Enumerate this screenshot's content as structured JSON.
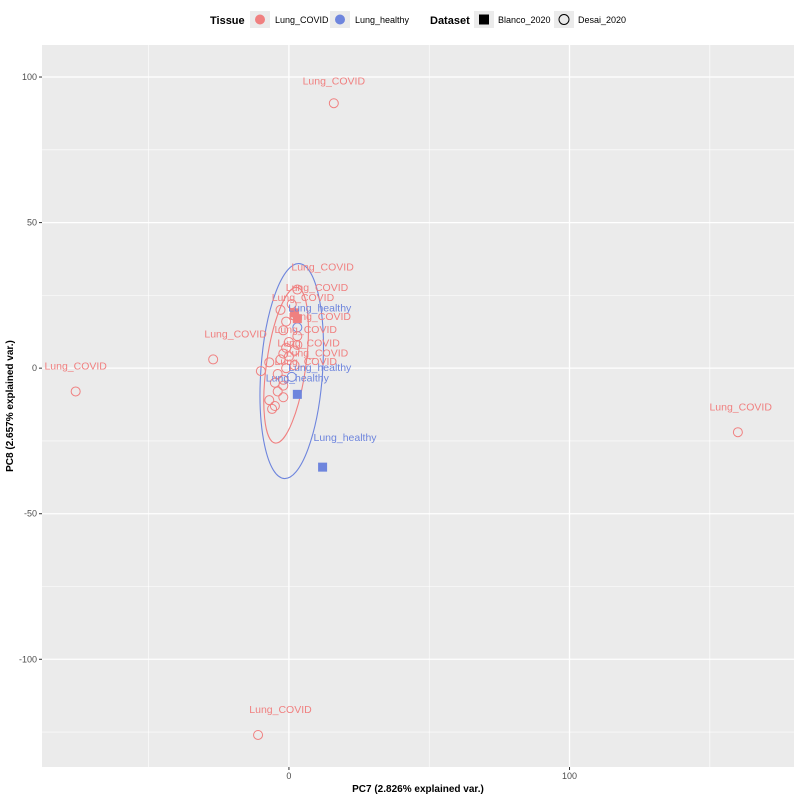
{
  "chart_data": {
    "type": "scatter",
    "title": "",
    "xlabel": "PC7 (2.826% explained var.)",
    "ylabel": "PC8 (2.657% explained var.)",
    "xlim": [
      -88,
      180
    ],
    "ylim": [
      -137,
      111
    ],
    "xticks": [
      0,
      100
    ],
    "yticks": [
      -100,
      -50,
      0,
      50,
      100
    ],
    "grid": true,
    "legend_position": "top",
    "legend": {
      "color_title": "Tissue",
      "color_entries": [
        {
          "label": "Lung_COVID",
          "color": "#F08080"
        },
        {
          "label": "Lung_healthy",
          "color": "#6E85DD"
        }
      ],
      "shape_title": "Dataset",
      "shape_entries": [
        {
          "label": "Blanco_2020",
          "shape": "square"
        },
        {
          "label": "Desai_2020",
          "shape": "circle"
        }
      ]
    },
    "colors": {
      "Lung_COVID": "#F08080",
      "Lung_healthy": "#6E85DD",
      "panel_background": "#EBEBEB",
      "grid": "#FFFFFF"
    },
    "points": [
      {
        "x": 16,
        "y": 91,
        "tissue": "Lung_COVID",
        "dataset": "Desai_2020"
      },
      {
        "x": -76,
        "y": -8,
        "tissue": "Lung_COVID",
        "dataset": "Desai_2020"
      },
      {
        "x": -27,
        "y": 3,
        "tissue": "Lung_COVID",
        "dataset": "Desai_2020"
      },
      {
        "x": 160,
        "y": -22,
        "tissue": "Lung_COVID",
        "dataset": "Desai_2020"
      },
      {
        "x": -11,
        "y": -126,
        "tissue": "Lung_COVID",
        "dataset": "Desai_2020"
      },
      {
        "x": 3,
        "y": 27,
        "tissue": "Lung_COVID",
        "dataset": "Desai_2020"
      },
      {
        "x": 1,
        "y": 22,
        "tissue": "Lung_COVID",
        "dataset": "Desai_2020"
      },
      {
        "x": -3,
        "y": 20,
        "tissue": "Lung_COVID",
        "dataset": "Desai_2020"
      },
      {
        "x": 2,
        "y": 18,
        "tissue": "Lung_COVID",
        "dataset": "Desai_2020"
      },
      {
        "x": -1,
        "y": 16,
        "tissue": "Lung_COVID",
        "dataset": "Desai_2020"
      },
      {
        "x": 3,
        "y": 14,
        "tissue": "Lung_healthy",
        "dataset": "Desai_2020"
      },
      {
        "x": -2,
        "y": 13,
        "tissue": "Lung_COVID",
        "dataset": "Desai_2020"
      },
      {
        "x": 3,
        "y": 11,
        "tissue": "Lung_COVID",
        "dataset": "Desai_2020"
      },
      {
        "x": 0,
        "y": 9,
        "tissue": "Lung_COVID",
        "dataset": "Desai_2020"
      },
      {
        "x": 3,
        "y": 8,
        "tissue": "Lung_COVID",
        "dataset": "Desai_2020"
      },
      {
        "x": -1,
        "y": 7,
        "tissue": "Lung_COVID",
        "dataset": "Desai_2020"
      },
      {
        "x": 2,
        "y": 6,
        "tissue": "Lung_COVID",
        "dataset": "Desai_2020"
      },
      {
        "x": -2,
        "y": 5,
        "tissue": "Lung_COVID",
        "dataset": "Desai_2020"
      },
      {
        "x": 0,
        "y": 4,
        "tissue": "Lung_COVID",
        "dataset": "Desai_2020"
      },
      {
        "x": -3,
        "y": 3,
        "tissue": "Lung_COVID",
        "dataset": "Desai_2020"
      },
      {
        "x": -7,
        "y": 2,
        "tissue": "Lung_COVID",
        "dataset": "Desai_2020"
      },
      {
        "x": 2,
        "y": 1,
        "tissue": "Lung_COVID",
        "dataset": "Desai_2020"
      },
      {
        "x": -1,
        "y": 0,
        "tissue": "Lung_COVID",
        "dataset": "Desai_2020"
      },
      {
        "x": -10,
        "y": -1,
        "tissue": "Lung_COVID",
        "dataset": "Desai_2020"
      },
      {
        "x": -4,
        "y": -2,
        "tissue": "Lung_COVID",
        "dataset": "Desai_2020"
      },
      {
        "x": 1,
        "y": -3,
        "tissue": "Lung_healthy",
        "dataset": "Desai_2020"
      },
      {
        "x": -2,
        "y": -4,
        "tissue": "Lung_COVID",
        "dataset": "Desai_2020"
      },
      {
        "x": -5,
        "y": -5,
        "tissue": "Lung_COVID",
        "dataset": "Desai_2020"
      },
      {
        "x": -2,
        "y": -6,
        "tissue": "Lung_COVID",
        "dataset": "Desai_2020"
      },
      {
        "x": -4,
        "y": -8,
        "tissue": "Lung_COVID",
        "dataset": "Desai_2020"
      },
      {
        "x": -2,
        "y": -10,
        "tissue": "Lung_COVID",
        "dataset": "Desai_2020"
      },
      {
        "x": -7,
        "y": -11,
        "tissue": "Lung_COVID",
        "dataset": "Desai_2020"
      },
      {
        "x": -5,
        "y": -13,
        "tissue": "Lung_COVID",
        "dataset": "Desai_2020"
      },
      {
        "x": -6,
        "y": -14,
        "tissue": "Lung_COVID",
        "dataset": "Desai_2020"
      },
      {
        "x": 2,
        "y": 19,
        "tissue": "Lung_COVID",
        "dataset": "Blanco_2020"
      },
      {
        "x": 3,
        "y": 17,
        "tissue": "Lung_COVID",
        "dataset": "Blanco_2020"
      },
      {
        "x": 3,
        "y": -9,
        "tissue": "Lung_healthy",
        "dataset": "Blanco_2020"
      },
      {
        "x": 12,
        "y": -34,
        "tissue": "Lung_healthy",
        "dataset": "Blanco_2020"
      }
    ],
    "labels": [
      {
        "text": "Lung_COVID",
        "x": 16,
        "y": 97.5,
        "tissue": "Lung_COVID"
      },
      {
        "text": "Lung_COVID",
        "x": -76,
        "y": -0.5,
        "tissue": "Lung_COVID"
      },
      {
        "text": "Lung_COVID",
        "x": -19,
        "y": 10.5,
        "tissue": "Lung_COVID"
      },
      {
        "text": "Lung_COVID",
        "x": 161,
        "y": -14.5,
        "tissue": "Lung_COVID"
      },
      {
        "text": "Lung_COVID",
        "x": -3,
        "y": -118.5,
        "tissue": "Lung_COVID"
      },
      {
        "text": "Lung_COVID",
        "x": 12,
        "y": 33.5,
        "tissue": "Lung_COVID"
      },
      {
        "text": "Lung_COVID",
        "x": 10,
        "y": 26.5,
        "tissue": "Lung_COVID"
      },
      {
        "text": "Lung_COVID",
        "x": 5,
        "y": 23,
        "tissue": "Lung_COVID"
      },
      {
        "text": "Lung_healthy",
        "x": 11,
        "y": 19.5,
        "tissue": "Lung_healthy"
      },
      {
        "text": "Lung_COVID",
        "x": 11,
        "y": 16.5,
        "tissue": "Lung_COVID"
      },
      {
        "text": "Lung_COVID",
        "x": 6,
        "y": 12,
        "tissue": "Lung_COVID"
      },
      {
        "text": "Lung_COVID",
        "x": 7,
        "y": 7.5,
        "tissue": "Lung_COVID"
      },
      {
        "text": "Lung_COVID",
        "x": 10,
        "y": 4,
        "tissue": "Lung_COVID"
      },
      {
        "text": "Lung_COVID",
        "x": 6,
        "y": 1,
        "tissue": "Lung_COVID"
      },
      {
        "text": "Lung_healthy",
        "x": 11,
        "y": -1,
        "tissue": "Lung_healthy"
      },
      {
        "text": "Lung_healthy",
        "x": 3,
        "y": -4.5,
        "tissue": "Lung_healthy"
      },
      {
        "text": "Lung_healthy",
        "x": 20,
        "y": -25,
        "tissue": "Lung_healthy"
      }
    ],
    "ellipses": [
      {
        "tissue": "Lung_COVID",
        "cx": -1,
        "cy": 1,
        "rx": 7,
        "ry": 27,
        "angle": 8
      },
      {
        "tissue": "Lung_healthy",
        "cx": 1,
        "cy": -1,
        "rx": 11,
        "ry": 37,
        "angle": 4
      }
    ]
  }
}
